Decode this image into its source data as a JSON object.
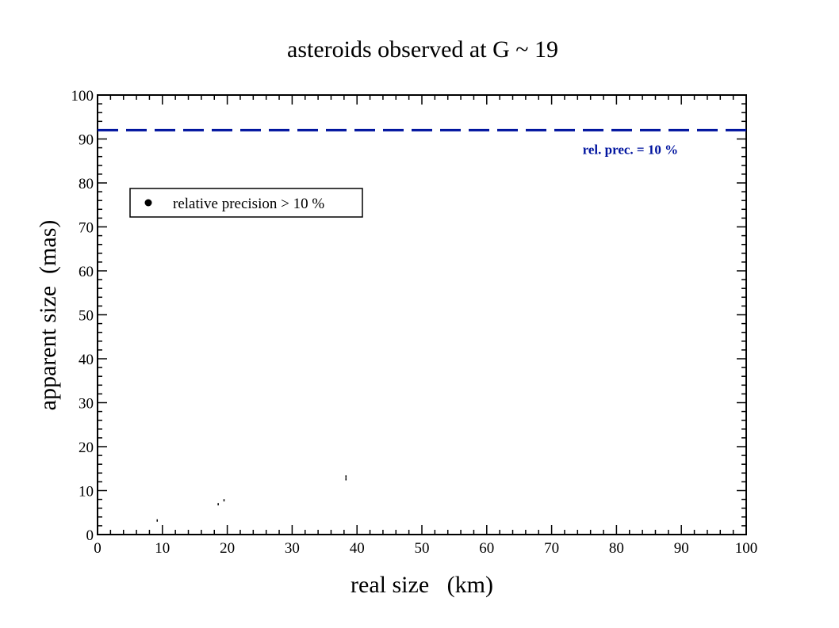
{
  "chart_data": {
    "type": "scatter",
    "title": "asteroids observed at G ~ 19",
    "xlabel": "real size   (km)",
    "ylabel": "apparent size  (mas)",
    "xlim": [
      0,
      100
    ],
    "ylim": [
      0,
      100
    ],
    "xticks": [
      "0",
      "10",
      "20",
      "30",
      "40",
      "50",
      "60",
      "70",
      "80",
      "90",
      "100"
    ],
    "yticks": [
      "0",
      "10",
      "20",
      "30",
      "40",
      "50",
      "60",
      "70",
      "80",
      "90",
      "100"
    ],
    "grid": false,
    "legend": {
      "placement": "top-left",
      "entries": [
        "relative precision > 10 %"
      ]
    },
    "series": [
      {
        "name": "relative precision > 10 %",
        "color": "#000000",
        "points": [
          {
            "x": 9.2,
            "y": 3.2
          },
          {
            "x": 18.6,
            "y": 6.9
          },
          {
            "x": 19.5,
            "y": 7.8
          },
          {
            "x": 38.3,
            "y": 12.6
          },
          {
            "x": 38.3,
            "y": 13.2
          }
        ]
      }
    ],
    "reference_line": {
      "y": 92,
      "label": "rel. prec. = 10 %",
      "color": "#00149f",
      "style": "dashed"
    }
  }
}
